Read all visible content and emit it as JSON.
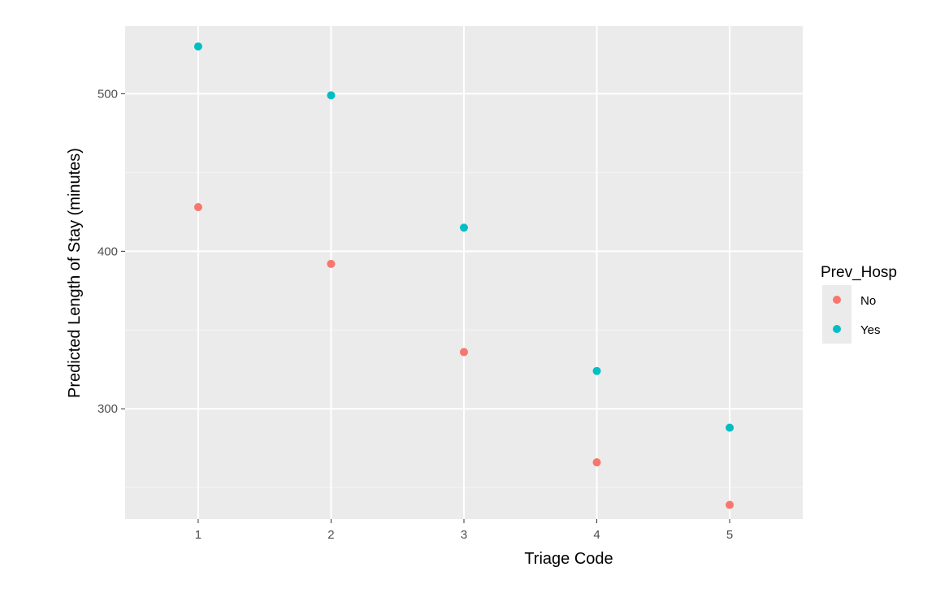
{
  "chart_data": {
    "type": "scatter",
    "xlabel": "Triage Code",
    "ylabel": "Predicted Length of Stay (minutes)",
    "x_ticks": [
      1,
      2,
      3,
      4,
      5
    ],
    "y_ticks": [
      300,
      400,
      500
    ],
    "xlim": [
      0.45,
      5.55
    ],
    "ylim": [
      230,
      543
    ],
    "grid": true,
    "legend": {
      "title": "Prev_Hosp",
      "position": "right"
    },
    "series": [
      {
        "name": "No",
        "color": "#F8766D",
        "x": [
          1,
          2,
          3,
          4,
          5
        ],
        "y": [
          428,
          392,
          336,
          266,
          239
        ]
      },
      {
        "name": "Yes",
        "color": "#00BFC4",
        "x": [
          1,
          2,
          3,
          4,
          5
        ],
        "y": [
          530,
          499,
          415,
          324,
          288
        ]
      }
    ]
  }
}
